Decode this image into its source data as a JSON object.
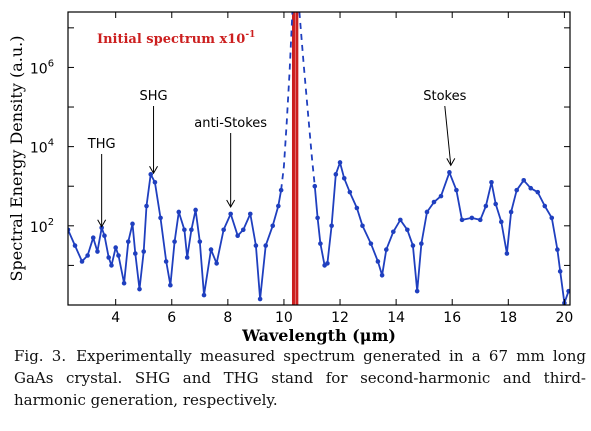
{
  "chart_data": {
    "type": "line",
    "xlabel": "Wavelength (μm)",
    "ylabel": "Spectral Energy Density (a.u.)",
    "xlim": [
      2.3,
      20.2
    ],
    "ylim": [
      0,
      7.4
    ],
    "yscale": "log",
    "x_ticks": [
      4,
      6,
      8,
      10,
      12,
      14,
      16,
      18,
      20
    ],
    "y_ticks": [
      {
        "exp": 2,
        "label_base": "10",
        "label_exp": "2"
      },
      {
        "exp": 4,
        "label_base": "10",
        "label_exp": "4"
      },
      {
        "exp": 6,
        "label_base": "10",
        "label_exp": "6"
      }
    ],
    "colors": {
      "spectrum": "#1f3fbf",
      "initial": "#cc1f1f",
      "axis": "#000000"
    },
    "initial_spectrum": {
      "label": "Initial spectrum x10",
      "label_exp": "-1",
      "center": 10.4
    },
    "series": [
      {
        "style": "solid",
        "points": [
          [
            2.3,
            1.9
          ],
          [
            2.55,
            1.5
          ],
          [
            2.8,
            1.1
          ],
          [
            3.0,
            1.25
          ],
          [
            3.2,
            1.7
          ],
          [
            3.35,
            1.35
          ],
          [
            3.5,
            1.95
          ],
          [
            3.6,
            1.75
          ],
          [
            3.75,
            1.2
          ],
          [
            3.85,
            1.0
          ],
          [
            4.0,
            1.45
          ],
          [
            4.1,
            1.25
          ],
          [
            4.3,
            0.55
          ],
          [
            4.45,
            1.6
          ],
          [
            4.6,
            2.05
          ],
          [
            4.7,
            1.3
          ],
          [
            4.85,
            0.4
          ],
          [
            5.0,
            1.35
          ],
          [
            5.1,
            2.5
          ],
          [
            5.25,
            3.3
          ],
          [
            5.4,
            3.1
          ],
          [
            5.6,
            2.2
          ],
          [
            5.8,
            1.1
          ],
          [
            5.95,
            0.5
          ],
          [
            6.1,
            1.6
          ],
          [
            6.25,
            2.35
          ],
          [
            6.45,
            1.9
          ],
          [
            6.55,
            1.2
          ],
          [
            6.7,
            1.9
          ],
          [
            6.85,
            2.4
          ],
          [
            7.0,
            1.6
          ],
          [
            7.15,
            0.25
          ],
          [
            7.4,
            1.4
          ],
          [
            7.6,
            1.05
          ],
          [
            7.85,
            1.9
          ],
          [
            8.1,
            2.3
          ],
          [
            8.35,
            1.75
          ],
          [
            8.55,
            1.9
          ],
          [
            8.8,
            2.3
          ],
          [
            9.0,
            1.5
          ],
          [
            9.15,
            0.15
          ],
          [
            9.35,
            1.5
          ],
          [
            9.6,
            2.0
          ],
          [
            9.8,
            2.5
          ],
          [
            9.9,
            2.9
          ]
        ]
      },
      {
        "style": "dashed",
        "points": [
          [
            9.9,
            2.9
          ],
          [
            10.0,
            3.5
          ],
          [
            10.1,
            4.6
          ],
          [
            10.2,
            5.9
          ],
          [
            10.3,
            7.4
          ]
        ]
      },
      {
        "style": "dashed",
        "points": [
          [
            10.55,
            7.4
          ],
          [
            10.7,
            6.1
          ],
          [
            10.85,
            4.9
          ],
          [
            11.0,
            3.7
          ],
          [
            11.1,
            3.0
          ]
        ]
      },
      {
        "style": "solid",
        "points": [
          [
            11.1,
            3.0
          ],
          [
            11.2,
            2.2
          ],
          [
            11.3,
            1.55
          ],
          [
            11.45,
            1.0
          ],
          [
            11.55,
            1.05
          ],
          [
            11.7,
            2.0
          ],
          [
            11.85,
            3.3
          ],
          [
            12.0,
            3.6
          ],
          [
            12.15,
            3.2
          ],
          [
            12.35,
            2.85
          ],
          [
            12.6,
            2.45
          ],
          [
            12.8,
            2.0
          ],
          [
            13.1,
            1.55
          ],
          [
            13.35,
            1.1
          ],
          [
            13.5,
            0.75
          ],
          [
            13.65,
            1.4
          ],
          [
            13.9,
            1.85
          ],
          [
            14.15,
            2.15
          ],
          [
            14.4,
            1.9
          ],
          [
            14.6,
            1.5
          ],
          [
            14.75,
            0.35
          ],
          [
            14.9,
            1.55
          ],
          [
            15.1,
            2.35
          ],
          [
            15.35,
            2.6
          ],
          [
            15.6,
            2.75
          ],
          [
            15.9,
            3.35
          ],
          [
            16.15,
            2.9
          ],
          [
            16.35,
            2.15
          ],
          [
            16.7,
            2.2
          ],
          [
            17.0,
            2.15
          ],
          [
            17.2,
            2.5
          ],
          [
            17.4,
            3.1
          ],
          [
            17.55,
            2.55
          ],
          [
            17.75,
            2.1
          ],
          [
            17.95,
            1.3
          ],
          [
            18.1,
            2.35
          ],
          [
            18.3,
            2.9
          ],
          [
            18.55,
            3.15
          ],
          [
            18.8,
            2.95
          ],
          [
            19.05,
            2.85
          ],
          [
            19.3,
            2.5
          ],
          [
            19.55,
            2.2
          ],
          [
            19.75,
            1.4
          ],
          [
            19.85,
            0.85
          ],
          [
            20.0,
            0.05
          ],
          [
            20.15,
            0.35
          ]
        ]
      }
    ],
    "annotations": [
      {
        "label": "THG",
        "x": 3.5,
        "y": 1.85
      },
      {
        "label": "SHG",
        "x": 5.35,
        "y": 3.2
      },
      {
        "label": "anti-Stokes",
        "x": 8.1,
        "y": 2.35
      },
      {
        "label": "Stokes",
        "x": 15.95,
        "y": 3.4
      }
    ]
  },
  "caption": {
    "fig_label": "Fig. 3.",
    "text": "Experimentally measured spectrum generated in a 67 mm long GaAs crystal. SHG and THG stand for second-harmonic and third-harmonic generation, respectively."
  }
}
